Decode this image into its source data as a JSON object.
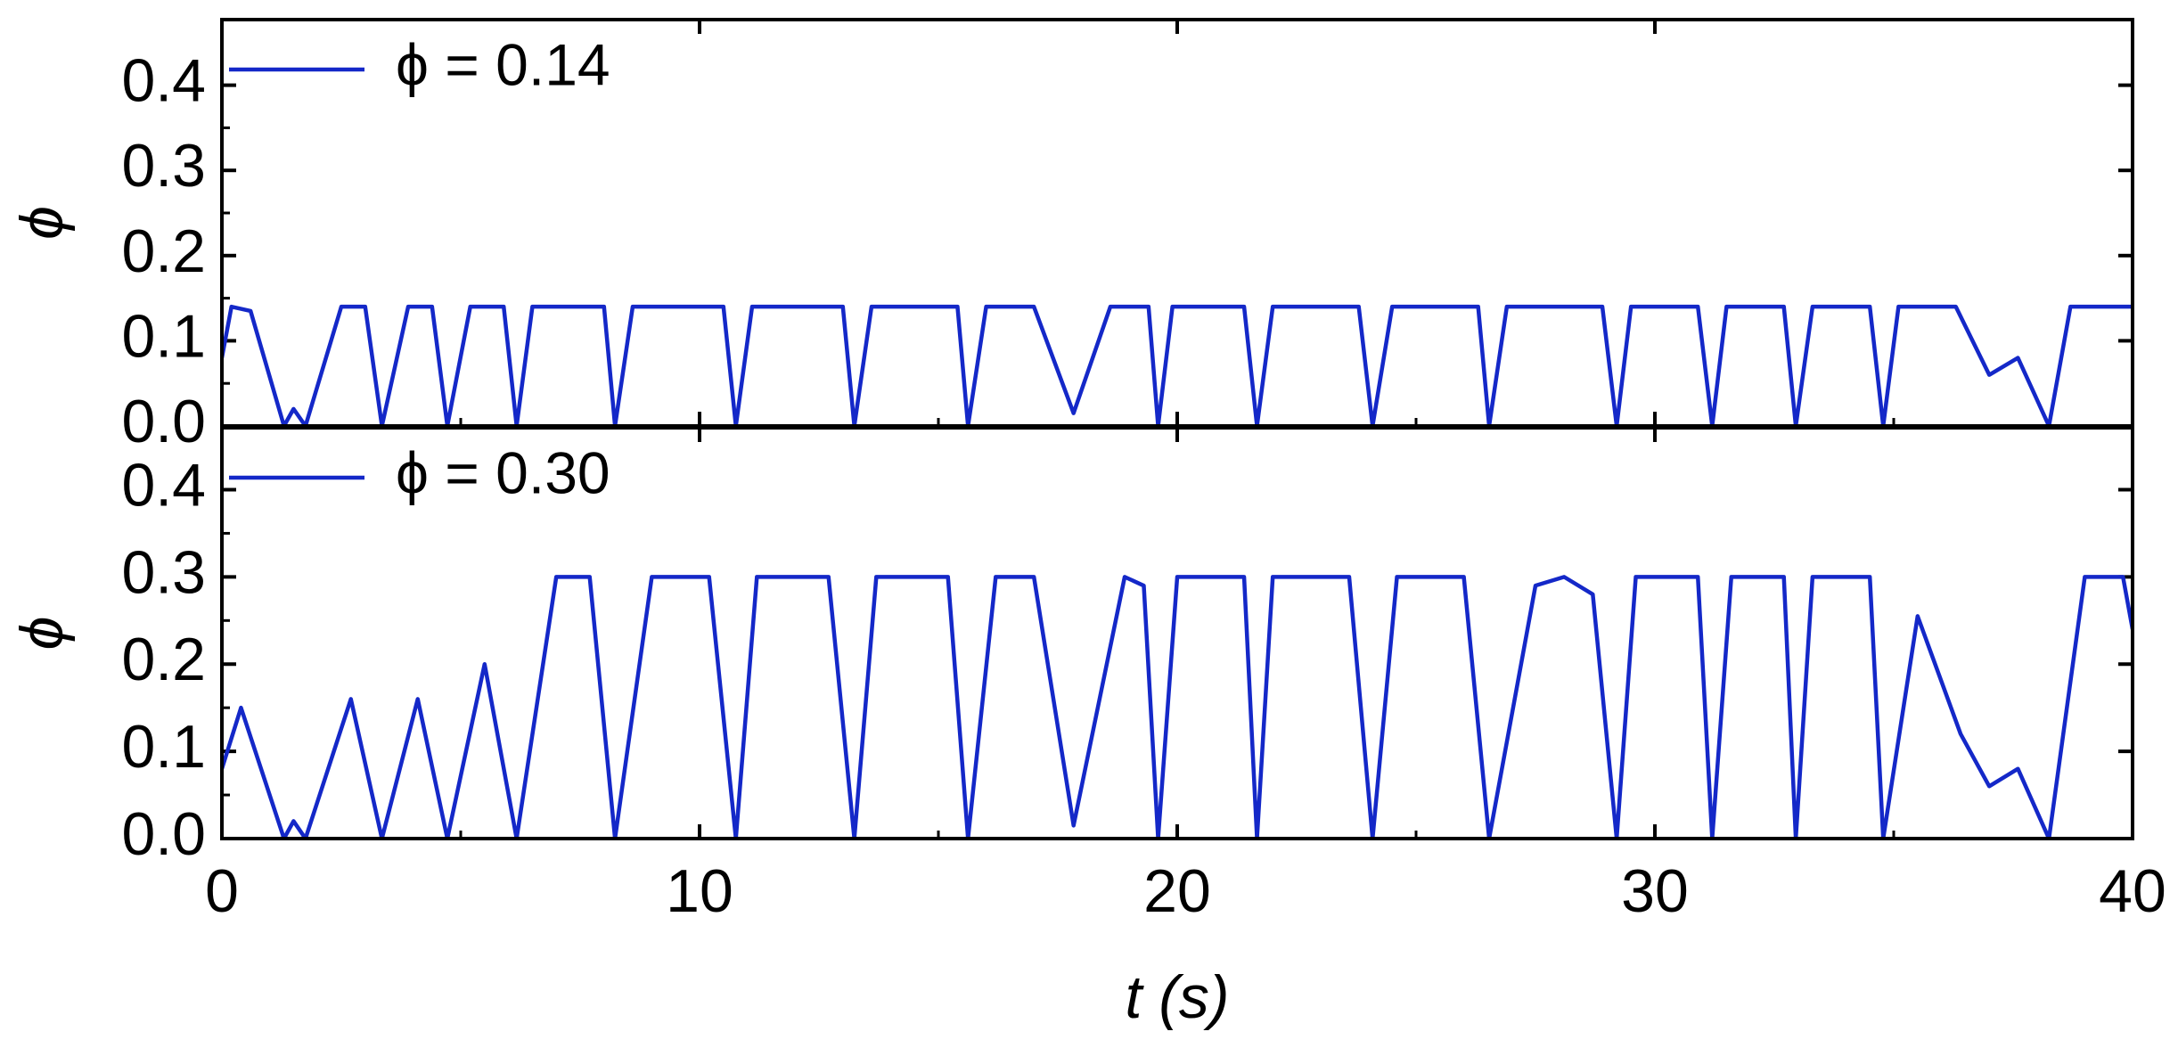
{
  "chart_data": [
    {
      "type": "line",
      "ylabel": "ϕ",
      "legend": "upper left",
      "xlim": [
        0,
        40
      ],
      "xticks": [
        0,
        10,
        20,
        30,
        40
      ],
      "ylim": [
        0,
        0.477
      ],
      "yticks": [
        {
          "value": 0,
          "label": "0.0"
        },
        0.1,
        0.2,
        0.3,
        0.4
      ],
      "x": [
        0,
        0.2,
        0.6,
        1.3,
        1.5,
        1.75,
        2.5,
        3.0,
        3.35,
        3.9,
        4.4,
        4.72,
        5.2,
        5.9,
        6.17,
        6.5,
        8.0,
        8.23,
        8.6,
        10.5,
        10.76,
        11.1,
        13.0,
        13.24,
        13.6,
        15.4,
        15.62,
        16.0,
        17.0,
        17.83,
        18.6,
        19.4,
        19.6,
        19.9,
        21.4,
        21.67,
        22.0,
        23.8,
        24.09,
        24.5,
        26.3,
        26.53,
        26.9,
        28.9,
        29.2,
        29.5,
        30.9,
        31.2,
        31.5,
        32.7,
        32.95,
        33.3,
        34.5,
        34.78,
        35.1,
        36.3,
        37.0,
        37.6,
        38.25,
        38.7,
        40
      ],
      "series": [
        {
          "name": "ϕ = 0.14",
          "color": "#1428c8",
          "values": [
            0.08,
            0.14,
            0.135,
            0,
            0.02,
            0,
            0.14,
            0.14,
            0,
            0.14,
            0.14,
            0,
            0.14,
            0.14,
            0,
            0.14,
            0.14,
            0,
            0.14,
            0.14,
            0,
            0.14,
            0.14,
            0,
            0.14,
            0.14,
            0,
            0.14,
            0.14,
            0.015,
            0.14,
            0.14,
            0,
            0.14,
            0.14,
            0,
            0.14,
            0.14,
            0,
            0.14,
            0.14,
            0,
            0.14,
            0.14,
            0,
            0.14,
            0.14,
            0,
            0.14,
            0.14,
            0,
            0.14,
            0.14,
            0,
            0.14,
            0.14,
            0.06,
            0.08,
            0,
            0.14,
            0.14
          ]
        }
      ]
    },
    {
      "type": "line",
      "ylabel": "ϕ",
      "xlabel": "t (s)",
      "legend": "upper left",
      "xlim": [
        0,
        40
      ],
      "xticks": [
        0,
        10,
        20,
        30,
        40
      ],
      "ylim": [
        0,
        0.471
      ],
      "yticks": [
        {
          "value": 0,
          "label": "0.0"
        },
        0.1,
        0.2,
        0.3,
        0.4
      ],
      "x": [
        0,
        0.4,
        1.3,
        1.5,
        1.75,
        2.7,
        3.35,
        4.1,
        4.72,
        5.5,
        6.17,
        7.0,
        7.7,
        8.23,
        9.0,
        10.2,
        10.76,
        11.2,
        12.7,
        13.24,
        13.7,
        15.2,
        15.62,
        16.2,
        17.0,
        17.83,
        18.9,
        19.3,
        19.6,
        20.0,
        21.4,
        21.67,
        22.0,
        23.6,
        24.09,
        24.6,
        26.0,
        26.53,
        27.5,
        28.1,
        28.7,
        29.2,
        29.6,
        30.9,
        31.2,
        31.6,
        32.7,
        32.95,
        33.3,
        34.5,
        34.78,
        35.5,
        36.4,
        37.0,
        37.6,
        38.25,
        39.0,
        39.8,
        40
      ],
      "series": [
        {
          "name": "ϕ = 0.30",
          "color": "#1428c8",
          "values": [
            0.08,
            0.15,
            0,
            0.02,
            0,
            0.16,
            0,
            0.16,
            0,
            0.2,
            0,
            0.3,
            0.3,
            0,
            0.3,
            0.3,
            0,
            0.3,
            0.3,
            0,
            0.3,
            0.3,
            0,
            0.3,
            0.3,
            0.015,
            0.3,
            0.29,
            0,
            0.3,
            0.3,
            0,
            0.3,
            0.3,
            0,
            0.3,
            0.3,
            0,
            0.29,
            0.3,
            0.28,
            0,
            0.3,
            0.3,
            0,
            0.3,
            0.3,
            0,
            0.3,
            0.3,
            0,
            0.255,
            0.12,
            0.06,
            0.08,
            0,
            0.3,
            0.3,
            0.24
          ]
        }
      ]
    }
  ]
}
